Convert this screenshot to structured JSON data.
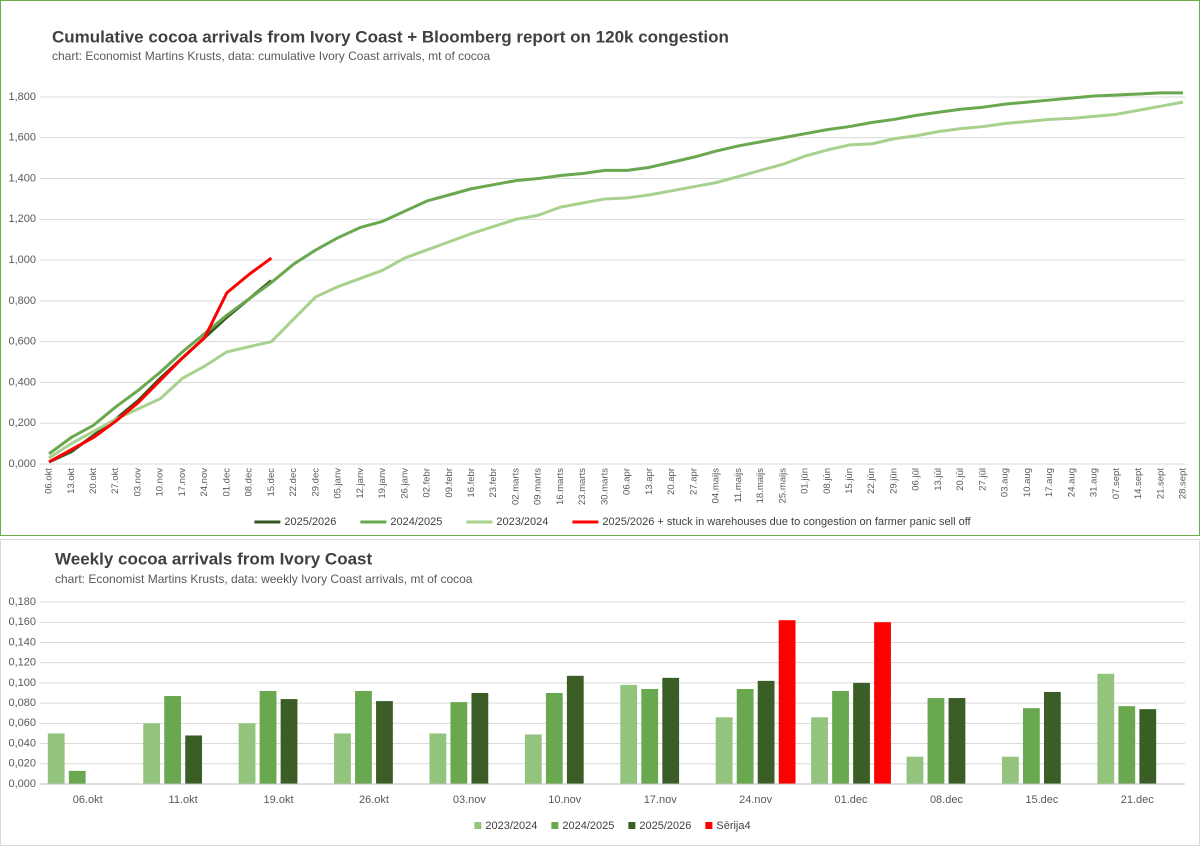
{
  "chart_data": [
    {
      "type": "line",
      "title": "Cumulative cocoa arrivals from Ivory Coast + Bloomberg report on 120k congestion",
      "subtitle": "chart: Economist Martins Krusts, data: cumulative Ivory Coast arrivals, mt of cocoa",
      "categories": [
        "06.okt",
        "13.okt",
        "20.okt",
        "27.okt",
        "03.nov",
        "10.nov",
        "17.nov",
        "24.nov",
        "01.dec",
        "08.dec",
        "15.dec",
        "22.dec",
        "29.dec",
        "05.janv",
        "12.janv",
        "19.janv",
        "26.janv",
        "02.febr",
        "09.febr",
        "16.febr",
        "23.febr",
        "02.marts",
        "09.marts",
        "16.marts",
        "23.marts",
        "30.marts",
        "06.apr",
        "13.apr",
        "20.apr",
        "27.apr",
        "04.maijs",
        "11.maijs",
        "18.maijs",
        "25.maijs",
        "01.jūn",
        "08.jūn",
        "15.jūn",
        "22.jūn",
        "29.jūn",
        "06.jūl",
        "13.jūl",
        "20.jūl",
        "27.jūl",
        "03.aug",
        "10.aug",
        "17.aug",
        "24.aug",
        "31.aug",
        "07.sept",
        "14.sept",
        "21.sept",
        "28.sept"
      ],
      "series": [
        {
          "name": "2025/2026",
          "color": "#375623",
          "values": [
            0.01,
            0.06,
            0.14,
            0.22,
            0.31,
            0.42,
            0.52,
            0.62,
            0.72,
            0.81,
            0.9,
            null,
            null,
            null,
            null,
            null,
            null,
            null,
            null,
            null,
            null,
            null,
            null,
            null,
            null,
            null,
            null,
            null,
            null,
            null,
            null,
            null,
            null,
            null,
            null,
            null,
            null,
            null,
            null,
            null,
            null,
            null,
            null,
            null,
            null,
            null,
            null,
            null,
            null,
            null,
            null,
            null
          ]
        },
        {
          "name": "2024/2025",
          "color": "#6aa84f",
          "values": [
            0.05,
            0.13,
            0.19,
            0.28,
            0.36,
            0.45,
            0.55,
            0.64,
            0.73,
            0.81,
            0.89,
            0.98,
            1.05,
            1.11,
            1.16,
            1.19,
            1.24,
            1.29,
            1.32,
            1.35,
            1.37,
            1.39,
            1.4,
            1.415,
            1.425,
            1.44,
            1.44,
            1.455,
            1.48,
            1.505,
            1.535,
            1.56,
            1.58,
            1.6,
            1.62,
            1.64,
            1.655,
            1.675,
            1.69,
            1.71,
            1.725,
            1.74,
            1.75,
            1.765,
            1.775,
            1.785,
            1.795,
            1.805,
            1.81,
            1.815,
            1.82,
            1.82
          ]
        },
        {
          "name": "2023/2024",
          "color": "#a9d18e",
          "values": [
            0.03,
            0.1,
            0.16,
            0.22,
            0.27,
            0.32,
            0.42,
            0.48,
            0.55,
            0.575,
            0.6,
            0.71,
            0.82,
            0.87,
            0.91,
            0.95,
            1.01,
            1.05,
            1.09,
            1.13,
            1.165,
            1.2,
            1.22,
            1.26,
            1.28,
            1.3,
            1.305,
            1.32,
            1.34,
            1.36,
            1.38,
            1.41,
            1.44,
            1.47,
            1.51,
            1.54,
            1.565,
            1.57,
            1.595,
            1.61,
            1.63,
            1.645,
            1.655,
            1.67,
            1.68,
            1.69,
            1.695,
            1.705,
            1.715,
            1.735,
            1.755,
            1.775
          ]
        },
        {
          "name": "2025/2026 + stuck in warehouses due to congestion on farmer panic sell off",
          "color": "#ff0000",
          "values": [
            0.01,
            0.07,
            0.13,
            0.21,
            0.3,
            0.41,
            0.52,
            0.62,
            0.84,
            0.93,
            1.01,
            null,
            null,
            null,
            null,
            null,
            null,
            null,
            null,
            null,
            null,
            null,
            null,
            null,
            null,
            null,
            null,
            null,
            null,
            null,
            null,
            null,
            null,
            null,
            null,
            null,
            null,
            null,
            null,
            null,
            null,
            null,
            null,
            null,
            null,
            null,
            null,
            null,
            null,
            null,
            null,
            null
          ]
        }
      ],
      "ylim": [
        0,
        1.8
      ],
      "yticks": [
        {
          "value": 0,
          "label": "0,000"
        },
        {
          "value": 0.2,
          "label": "0,200"
        },
        {
          "value": 0.4,
          "label": "0,400"
        },
        {
          "value": 0.6,
          "label": "0,600"
        },
        {
          "value": 0.8,
          "label": "0,800"
        },
        {
          "value": 1.0,
          "label": "1,000"
        },
        {
          "value": 1.2,
          "label": "1,200"
        },
        {
          "value": 1.4,
          "label": "1,400"
        },
        {
          "value": 1.6,
          "label": "1,600"
        },
        {
          "value": 1.8,
          "label": "1,800"
        }
      ],
      "grid": true,
      "legend": "bottom"
    },
    {
      "type": "bar",
      "title": "Weekly cocoa arrivals from Ivory Coast",
      "subtitle": "chart: Economist Martins Krusts, data: weekly Ivory Coast arrivals, mt of cocoa",
      "categories": [
        "06.okt",
        "11.okt",
        "19.okt",
        "26.okt",
        "03.nov",
        "10.nov",
        "17.nov",
        "24.nov",
        "01.dec",
        "08.dec",
        "15.dec",
        "21.dec"
      ],
      "series": [
        {
          "name": "2023/2024",
          "color": "#92c47d",
          "values": [
            0.05,
            0.06,
            0.06,
            0.05,
            0.05,
            0.049,
            0.098,
            0.066,
            0.066,
            0.027,
            0.027,
            0.109
          ]
        },
        {
          "name": "2024/2025",
          "color": "#6aa84f",
          "values": [
            0.013,
            0.087,
            0.092,
            0.092,
            0.081,
            0.09,
            0.094,
            0.094,
            0.092,
            0.085,
            0.075,
            0.077
          ]
        },
        {
          "name": "2025/2026",
          "color": "#3b5e27",
          "values": [
            null,
            0.048,
            0.084,
            0.082,
            0.09,
            0.107,
            0.105,
            0.102,
            0.1,
            0.085,
            0.091,
            0.074
          ]
        },
        {
          "name": "Sērija4",
          "color": "#ff0000",
          "values": [
            null,
            null,
            null,
            null,
            null,
            null,
            null,
            0.162,
            0.16,
            null,
            null,
            null
          ]
        }
      ],
      "ylim": [
        0,
        0.18
      ],
      "yticks": [
        {
          "value": 0,
          "label": "0,000"
        },
        {
          "value": 0.02,
          "label": "0,020"
        },
        {
          "value": 0.04,
          "label": "0,040"
        },
        {
          "value": 0.06,
          "label": "0,060"
        },
        {
          "value": 0.08,
          "label": "0,080"
        },
        {
          "value": 0.1,
          "label": "0,100"
        },
        {
          "value": 0.12,
          "label": "0,120"
        },
        {
          "value": 0.14,
          "label": "0,140"
        },
        {
          "value": 0.16,
          "label": "0,160"
        },
        {
          "value": 0.18,
          "label": "0,180"
        }
      ],
      "grid": true,
      "legend": "bottom"
    }
  ]
}
